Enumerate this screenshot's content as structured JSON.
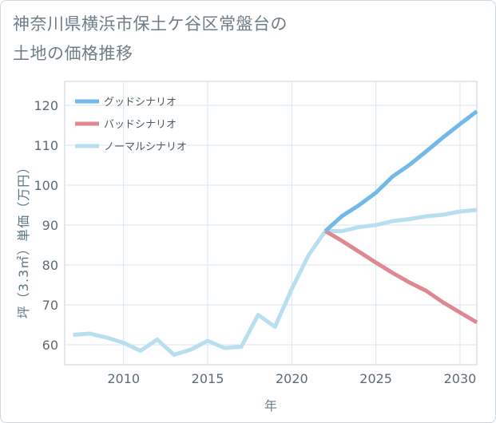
{
  "chart_data": {
    "type": "line",
    "title_lines": [
      "神奈川県横浜市保土ケ谷区常盤台の",
      "土地の価格推移"
    ],
    "xlabel": "年",
    "ylabel": "坪（3.3㎡）単価（万円）",
    "xlim": [
      2006.5,
      2031
    ],
    "ylim": [
      55,
      126
    ],
    "x_ticks": [
      2010,
      2015,
      2020,
      2025,
      2030
    ],
    "y_ticks": [
      60,
      70,
      80,
      90,
      100,
      110,
      120
    ],
    "grid": true,
    "legend_position": "top-left",
    "series": [
      {
        "name": "グッドシナリオ",
        "color": "#72b9e8",
        "x": [
          2022,
          2023,
          2024,
          2025,
          2026,
          2027,
          2028,
          2029,
          2030,
          2031
        ],
        "y": [
          88.5,
          92.3,
          95.0,
          98.1,
          102.2,
          105.1,
          108.5,
          112.0,
          115.3,
          118.5
        ]
      },
      {
        "name": "バッドシナリオ",
        "color": "#de8891",
        "x": [
          2022,
          2023,
          2024,
          2025,
          2026,
          2027,
          2028,
          2029,
          2030,
          2031
        ],
        "y": [
          88.5,
          86.0,
          83.3,
          80.6,
          78.0,
          75.6,
          73.5,
          70.6,
          68.1,
          65.6
        ]
      },
      {
        "name": "ノーマルシナリオ",
        "color": "#b7dff0",
        "x": [
          2007,
          2008,
          2009,
          2010,
          2011,
          2012,
          2013,
          2014,
          2015,
          2016,
          2017,
          2018,
          2019,
          2020,
          2021,
          2022,
          2023,
          2024,
          2025,
          2026,
          2027,
          2028,
          2029,
          2030,
          2031
        ],
        "y": [
          62.5,
          62.8,
          61.8,
          60.5,
          58.5,
          61.3,
          57.5,
          58.8,
          61.0,
          59.2,
          59.5,
          67.5,
          64.5,
          74.0,
          82.5,
          88.5,
          88.5,
          89.5,
          90.0,
          91.0,
          91.5,
          92.2,
          92.6,
          93.4,
          93.8
        ]
      }
    ]
  }
}
